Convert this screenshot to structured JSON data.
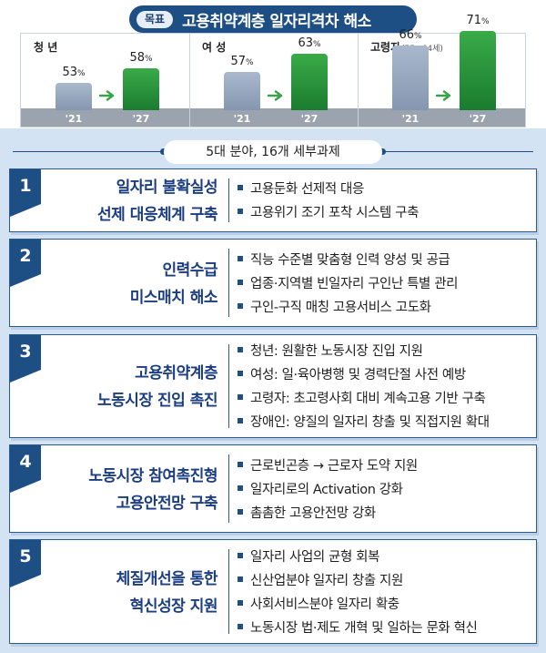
{
  "goal": {
    "badge": "목표",
    "title": "고용취약계층 일자리격차 해소"
  },
  "chart_data": {
    "type": "bar",
    "groups": [
      {
        "title": "청 년",
        "subtitle": "",
        "categories": [
          "'21",
          "'27"
        ],
        "values": [
          53,
          58
        ],
        "unit": "%"
      },
      {
        "title": "여 성",
        "subtitle": "",
        "categories": [
          "'21",
          "'27"
        ],
        "values": [
          57,
          63
        ],
        "unit": "%"
      },
      {
        "title": "고령자",
        "subtitle": "(55~64세)",
        "categories": [
          "'21",
          "'27"
        ],
        "values": [
          66,
          71
        ],
        "unit": "%"
      }
    ],
    "colors": {
      "2021": "#8f9fb6",
      "2027": "#25923a"
    }
  },
  "subtitle": "5대 분야, 16개 세부과제",
  "areas": [
    {
      "num": "1",
      "title": [
        "일자리 불확실성",
        "선제 대응체계 구축"
      ],
      "items": [
        "고용둔화 선제적 대응",
        "고용위기 조기 포착 시스템 구축"
      ]
    },
    {
      "num": "2",
      "title": [
        "인력수급",
        "미스매치 해소"
      ],
      "items": [
        "직능 수준별 맞춤형 인력 양성 및 공급",
        "업종·지역별 빈일자리 구인난 특별 관리",
        "구인-구직 매칭 고용서비스 고도화"
      ]
    },
    {
      "num": "3",
      "title": [
        "고용취약계층",
        "노동시장 진입 촉진"
      ],
      "items": [
        "청년: 원활한 노동시장 진입 지원",
        "여성: 일·육아병행 및 경력단절 사전 예방",
        "고령자: 초고령사회 대비 계속고용 기반 구축",
        "장애인: 양질의 일자리 창출 및 직접지원 확대"
      ]
    },
    {
      "num": "4",
      "title": [
        "노동시장 참여촉진형",
        "고용안전망 구축"
      ],
      "items": [
        "근로빈곤층 → 근로자 도약 지원",
        "일자리로의 Activation 강화",
        "촘촘한 고용안전망 강화"
      ]
    },
    {
      "num": "5",
      "title": [
        "체질개선을 통한",
        "혁신성장 지원"
      ],
      "items": [
        "일자리 사업의 균형 회복",
        "신산업분야 일자리 창출 지원",
        "사회서비스분야 일자리 확충",
        "노동시장 법·제도 개혁 및 일하는 문화 혁신"
      ]
    }
  ]
}
